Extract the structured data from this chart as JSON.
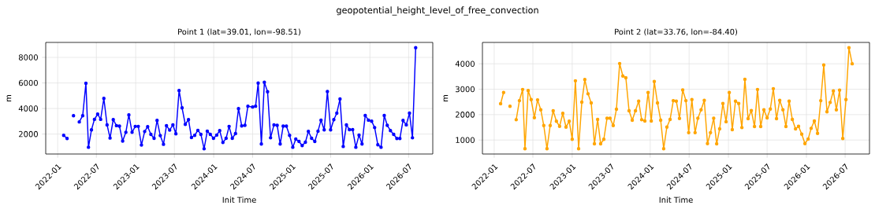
{
  "chart_data": [
    {
      "type": "line",
      "title": "Point 1 (lat=39.01, lon=-98.51)",
      "xlabel": "Init Time",
      "ylabel": "m",
      "annotations": [
        "geopotential_height_level_of_free_convection"
      ],
      "x": [
        "2022-01-29",
        "2022-02-14",
        "2022-03-01",
        "2022-03-16",
        "2022-03-30",
        "2022-04-12",
        "2022-04-28",
        "2022-05-13",
        "2022-05-25",
        "2022-06-08",
        "2022-06-22",
        "2022-07-07",
        "2022-07-21",
        "2022-08-05",
        "2022-08-20",
        "2022-09-03",
        "2022-09-18",
        "2022-10-03",
        "2022-10-17",
        "2022-11-01",
        "2022-11-16",
        "2022-11-30",
        "2022-12-15",
        "2022-12-30",
        "2023-01-13",
        "2023-01-28",
        "2023-02-12",
        "2023-02-26",
        "2023-03-13",
        "2023-03-28",
        "2023-04-11",
        "2023-04-26",
        "2023-05-11",
        "2023-05-25",
        "2023-06-09",
        "2023-06-24",
        "2023-07-08",
        "2023-07-23",
        "2023-08-06",
        "2023-08-21",
        "2023-09-05",
        "2023-09-19",
        "2023-10-04",
        "2023-10-19",
        "2023-11-02",
        "2023-11-17",
        "2023-12-02",
        "2023-12-16",
        "2023-12-31",
        "2024-01-15",
        "2024-01-29",
        "2024-02-13",
        "2024-02-28",
        "2024-03-13",
        "2024-03-28",
        "2024-04-12",
        "2024-04-26",
        "2024-05-11",
        "2024-05-26",
        "2024-06-09",
        "2024-07-01",
        "2024-07-15",
        "2024-07-27",
        "2024-08-11",
        "2024-08-25",
        "2024-09-09",
        "2024-09-23",
        "2024-10-09",
        "2024-10-24",
        "2024-11-07",
        "2024-11-21",
        "2024-12-06",
        "2024-12-21",
        "2025-01-05",
        "2025-01-19",
        "2025-02-03",
        "2025-02-18",
        "2025-03-05",
        "2025-03-19",
        "2025-04-03",
        "2025-04-18",
        "2025-05-03",
        "2025-05-17",
        "2025-06-01",
        "2025-06-16",
        "2025-07-01",
        "2025-07-16",
        "2025-07-30",
        "2025-08-14",
        "2025-08-29",
        "2025-09-13",
        "2025-09-27",
        "2025-10-12",
        "2025-10-27",
        "2025-11-11",
        "2025-11-25",
        "2025-12-10",
        "2025-12-25",
        "2026-01-09",
        "2026-01-23",
        "2026-02-07",
        "2026-02-22",
        "2026-03-09",
        "2026-03-23",
        "2026-04-07",
        "2026-04-22",
        "2026-05-07",
        "2026-05-21",
        "2026-06-05",
        "2026-06-20",
        "2026-07-05",
        "2026-07-19",
        "2026-08-03"
      ],
      "series": [
        {
          "color": "#0000ff",
          "values": [
            1900,
            1650,
            null,
            3440,
            null,
            2950,
            3440,
            5970,
            970,
            2330,
            3150,
            3560,
            3150,
            4790,
            2720,
            1690,
            3130,
            2660,
            2620,
            1450,
            2140,
            3500,
            2140,
            2600,
            2600,
            1140,
            2200,
            2580,
            1980,
            1670,
            3070,
            1880,
            1200,
            2660,
            2310,
            2720,
            2020,
            5410,
            4050,
            2760,
            3130,
            1730,
            1900,
            2290,
            1980,
            850,
            2230,
            1980,
            1670,
            1920,
            2270,
            1340,
            1670,
            2600,
            1670,
            2040,
            3990,
            2640,
            2680,
            4180,
            4120,
            4180,
            5990,
            1220,
            6050,
            5310,
            1710,
            2720,
            2680,
            1220,
            2620,
            2620,
            1900,
            970,
            1610,
            1420,
            1100,
            1360,
            2210,
            1670,
            1420,
            2230,
            3090,
            2330,
            5330,
            2330,
            3130,
            3640,
            4750,
            1030,
            2720,
            2350,
            2350,
            970,
            1920,
            1220,
            3460,
            3090,
            3010,
            2510,
            1160,
            970,
            3460,
            2680,
            2270,
            1980,
            1650,
            1650,
            3070,
            2720,
            3640,
            1710,
            8760
          ]
        }
      ],
      "xlim": [
        "2021-11-06",
        "2026-10-22"
      ],
      "ylim": [
        440,
        9170
      ],
      "xticks": [
        "2022-01",
        "2022-07",
        "2023-01",
        "2023-07",
        "2024-01",
        "2024-07",
        "2025-01",
        "2025-07",
        "2026-01",
        "2026-07"
      ],
      "yticks": [
        2000,
        4000,
        6000,
        8000
      ],
      "grid": true,
      "marker": "circle"
    },
    {
      "type": "line",
      "title": "Point 2 (lat=33.76, lon=-84.40)",
      "xlabel": "Init Time",
      "ylabel": "m",
      "x": [
        "2022-01-31",
        "2022-02-14",
        "2022-03-01",
        "2022-03-16",
        "2022-03-31",
        "2022-04-14",
        "2022-04-29",
        "2022-05-14",
        "2022-05-25",
        "2022-06-09",
        "2022-06-23",
        "2022-07-08",
        "2022-07-23",
        "2022-08-07",
        "2022-08-21",
        "2022-09-05",
        "2022-09-20",
        "2022-10-04",
        "2022-10-19",
        "2022-11-03",
        "2022-11-18",
        "2022-12-03",
        "2022-12-18",
        "2023-01-01",
        "2023-01-16",
        "2023-01-31",
        "2023-02-15",
        "2023-03-01",
        "2023-03-16",
        "2023-03-31",
        "2023-04-15",
        "2023-04-30",
        "2023-05-14",
        "2023-05-29",
        "2023-06-13",
        "2023-06-27",
        "2023-07-12",
        "2023-07-27",
        "2023-08-11",
        "2023-08-26",
        "2023-09-09",
        "2023-09-24",
        "2023-10-09",
        "2023-10-24",
        "2023-11-08",
        "2023-11-22",
        "2023-12-07",
        "2023-12-22",
        "2024-01-06",
        "2024-01-20",
        "2024-02-04",
        "2024-02-19",
        "2024-03-04",
        "2024-03-19",
        "2024-04-03",
        "2024-04-18",
        "2024-05-02",
        "2024-05-17",
        "2024-06-01",
        "2024-06-16",
        "2024-06-29",
        "2024-07-14",
        "2024-07-29",
        "2024-08-11",
        "2024-08-26",
        "2024-09-10",
        "2024-09-25",
        "2024-10-09",
        "2024-10-24",
        "2024-11-07",
        "2024-11-21",
        "2024-12-06",
        "2024-12-21",
        "2025-01-05",
        "2025-01-19",
        "2025-02-03",
        "2025-02-18",
        "2025-03-05",
        "2025-03-19",
        "2025-04-03",
        "2025-04-18",
        "2025-05-03",
        "2025-05-17",
        "2025-06-01",
        "2025-06-16",
        "2025-07-01",
        "2025-07-16",
        "2025-07-30",
        "2025-08-14",
        "2025-08-29",
        "2025-09-13",
        "2025-09-27",
        "2025-10-12",
        "2025-10-27",
        "2025-11-11",
        "2025-11-25",
        "2025-12-10",
        "2025-12-25",
        "2026-01-09",
        "2026-01-23",
        "2026-02-07",
        "2026-02-22",
        "2026-03-09",
        "2026-03-23",
        "2026-04-07",
        "2026-04-22",
        "2026-05-07",
        "2026-05-21",
        "2026-06-05",
        "2026-06-20",
        "2026-07-05",
        "2026-07-19",
        "2026-08-03"
      ],
      "series": [
        {
          "color": "#ffa500",
          "values": [
            2430,
            2870,
            null,
            2330,
            null,
            1800,
            2550,
            2990,
            660,
            2950,
            2590,
            1880,
            2580,
            2190,
            1570,
            660,
            1570,
            2150,
            1740,
            1540,
            2050,
            1510,
            1740,
            1030,
            3330,
            660,
            2490,
            3380,
            2820,
            2460,
            850,
            1810,
            850,
            1030,
            1860,
            1860,
            1570,
            2210,
            4010,
            3520,
            3450,
            2150,
            1780,
            2150,
            2530,
            1800,
            1750,
            2870,
            1750,
            3300,
            2460,
            1780,
            660,
            1510,
            1810,
            2550,
            2530,
            1850,
            2970,
            2550,
            1290,
            2590,
            1290,
            1860,
            2190,
            2560,
            860,
            1290,
            1860,
            850,
            1440,
            2440,
            1720,
            2870,
            1410,
            2530,
            2440,
            1490,
            3390,
            1840,
            2160,
            1530,
            2990,
            1530,
            2190,
            1870,
            2220,
            3020,
            1840,
            2560,
            2190,
            1530,
            2530,
            1810,
            1440,
            1540,
            1230,
            860,
            1040,
            1460,
            1750,
            1260,
            2550,
            3950,
            2110,
            2480,
            2930,
            2190,
            2960,
            1060,
            2590,
            4630,
            4000
          ]
        }
      ],
      "xlim": [
        "2021-11-07",
        "2026-10-23"
      ],
      "ylim": [
        450,
        4840
      ],
      "xticks": [
        "2022-01",
        "2022-07",
        "2023-01",
        "2023-07",
        "2024-01",
        "2024-07",
        "2025-01",
        "2025-07",
        "2026-01",
        "2026-07"
      ],
      "yticks": [
        1000,
        2000,
        3000,
        4000
      ],
      "grid": true,
      "marker": "circle"
    }
  ]
}
